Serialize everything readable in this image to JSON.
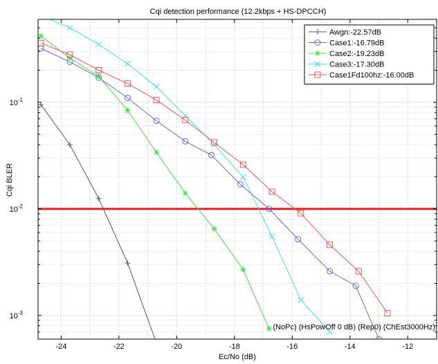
{
  "chart_data": {
    "type": "line",
    "title": "Cqi detection performance (12.2kbps + HS-DPCCH)",
    "xlabel": "Ec/No (dB)",
    "ylabel": "Cqi BLER",
    "xlim": [
      -24.8,
      -11
    ],
    "ylim": [
      0.0006,
      0.6
    ],
    "y_scale": "log",
    "grid": true,
    "legend_position": "top-right",
    "x_ticks": [
      -24,
      -22,
      -20,
      -18,
      -16,
      -14,
      -12
    ],
    "x_tick_labels": [
      "-24",
      "-22",
      "-20",
      "-18",
      "-16",
      "-14",
      "-12"
    ],
    "y_ticks": [
      0.1,
      0.01,
      0.001
    ],
    "y_tick_labels": [
      {
        "base": "10",
        "exp": "-1"
      },
      {
        "base": "10",
        "exp": "-2"
      },
      {
        "base": "10",
        "exp": "-3"
      }
    ],
    "threshold": {
      "y": 0.01,
      "color": "#e02020"
    },
    "annotation": "(NoPc) (HsPowOff 0 dB) (Rep0) (ChEst3000Hz)",
    "series": [
      {
        "name": "Awgn:-22.57dB",
        "color": "#555555",
        "marker": "plus",
        "x": [
          -24.7,
          -23.7,
          -22.7,
          -21.7,
          -20.7
        ],
        "y": [
          0.095,
          0.04,
          0.0125,
          0.0031,
          0.00055
        ]
      },
      {
        "name": "Case1:-16.79dB",
        "color": "#6666ee",
        "marker": "circle",
        "x": [
          -24.7,
          -23.7,
          -22.7,
          -21.7,
          -20.7,
          -19.7,
          -18.8,
          -17.8,
          -16.8,
          -15.8,
          -14.7,
          -13.8,
          -13.0
        ],
        "y": [
          0.32,
          0.24,
          0.17,
          0.11,
          0.067,
          0.043,
          0.032,
          0.017,
          0.01,
          0.0052,
          0.0026,
          0.0019,
          0.0006
        ]
      },
      {
        "name": "Case2:-19.23dB",
        "color": "#44dd44",
        "marker": "star",
        "x": [
          -24.7,
          -23.7,
          -22.7,
          -21.7,
          -20.7,
          -19.7,
          -18.7,
          -17.7,
          -16.8
        ],
        "y": [
          0.42,
          0.26,
          0.175,
          0.084,
          0.034,
          0.014,
          0.0065,
          0.0027,
          0.00075
        ]
      },
      {
        "name": "Case3:-17.30dB",
        "color": "#44ddee",
        "marker": "cross",
        "x": [
          -24.7,
          -23.7,
          -22.7,
          -21.7,
          -20.7,
          -19.7,
          -18.7,
          -17.7,
          -16.7,
          -15.7,
          -14.7
        ],
        "y": [
          0.65,
          0.5,
          0.35,
          0.23,
          0.14,
          0.075,
          0.04,
          0.02,
          0.0055,
          0.0014,
          0.0007
        ]
      },
      {
        "name": "Case1Fd100hz:-16.00dB",
        "color": "#ee5555",
        "marker": "square",
        "x": [
          -24.7,
          -23.7,
          -22.7,
          -21.7,
          -20.7,
          -19.7,
          -18.7,
          -17.7,
          -16.7,
          -15.7,
          -14.7,
          -13.7,
          -12.7
        ],
        "y": [
          0.36,
          0.28,
          0.2,
          0.15,
          0.105,
          0.068,
          0.042,
          0.026,
          0.0145,
          0.0091,
          0.0046,
          0.0026,
          0.00105
        ]
      }
    ]
  }
}
